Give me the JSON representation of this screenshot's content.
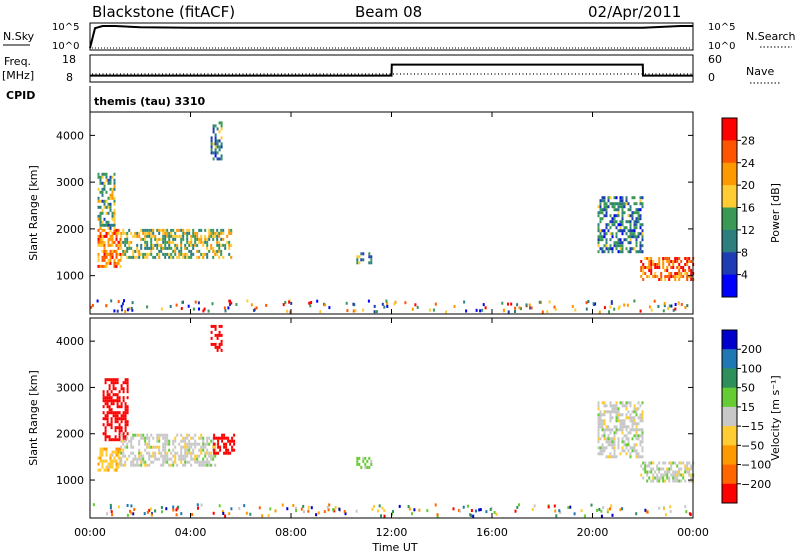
{
  "header": {
    "station": "Blackstone (fitACF)",
    "beam": "Beam 08",
    "date": "02/Apr/2011"
  },
  "top_panels": {
    "nsky_label": "N.Sky",
    "nsearch_label": "N.Search",
    "noise_ticks": [
      "10^5",
      "10^0"
    ],
    "freq_label_1": "Freq.",
    "freq_label_2": "[MHz]",
    "freq_ticks": [
      "18",
      "8"
    ],
    "nave_label": "Nave",
    "nave_ticks": [
      "60",
      "0"
    ],
    "cpid_label": "CPID",
    "cpid_value": "themis (tau) 3310"
  },
  "axes": {
    "ylabel": "Slant Range [km]",
    "xlabel": "Time UT",
    "y_ticks": [
      "4000",
      "3000",
      "2000",
      "1000"
    ],
    "x_ticks": [
      "00:00",
      "04:00",
      "08:00",
      "12:00",
      "16:00",
      "20:00",
      "00:00"
    ]
  },
  "power_scale": {
    "label": "Power [dB]",
    "ticks": [
      "28",
      "24",
      "20",
      "16",
      "12",
      "8",
      "4"
    ],
    "colors": [
      "#ff0000",
      "#ff5500",
      "#ff9900",
      "#ffcc33",
      "#3a9a55",
      "#2d7f7f",
      "#1e3cb4",
      "#0000ff"
    ]
  },
  "velocity_scale": {
    "label": "Velocity [m s⁻¹]",
    "ticks": [
      "200",
      "100",
      "50",
      "15",
      "−15",
      "−50",
      "−100",
      "−200"
    ],
    "colors": [
      "#0000cc",
      "#1f78b4",
      "#2d8f5a",
      "#66cc33",
      "#c8c8c8",
      "#ffcc33",
      "#ff9900",
      "#ff6600",
      "#ff0000"
    ]
  },
  "chart_data": [
    {
      "type": "line",
      "title": "Blackstone (fitACF)   Beam 08   02/Apr/2011",
      "series": [
        {
          "name": "N.Sky",
          "x_hours": [
            0,
            0.2,
            0.5,
            1,
            2,
            4,
            8,
            12,
            16,
            20,
            22,
            23.5,
            24
          ],
          "values_log10": [
            0,
            4.5,
            5,
            5,
            4.7,
            4.6,
            4.6,
            4.6,
            4.6,
            4.6,
            4.6,
            5,
            5
          ]
        },
        {
          "name": "N.Search",
          "x_hours": [
            0,
            24
          ],
          "values_log10": [
            0,
            0
          ]
        }
      ],
      "ylabel": "",
      "ylim_log10": [
        0,
        5
      ],
      "xlim_hours": [
        0,
        24
      ]
    },
    {
      "type": "line",
      "series": [
        {
          "name": "Freq.",
          "unit": "MHz",
          "x_hours": [
            0,
            0.1,
            12,
            12.01,
            22,
            22.01,
            24
          ],
          "values": [
            10,
            10,
            10,
            15,
            15,
            10,
            10
          ]
        },
        {
          "name": "Nave",
          "x_hours": [
            0,
            24
          ],
          "values": [
            10,
            10
          ]
        }
      ],
      "ylim_freq": [
        8,
        18
      ],
      "ylim_nave": [
        0,
        60
      ],
      "xlim_hours": [
        0,
        24
      ]
    },
    {
      "type": "heatmap",
      "title": "Power",
      "xlabel": "",
      "ylabel": "Slant Range [km]",
      "xlim_hours": [
        0,
        24
      ],
      "ylim_km": [
        180,
        4500
      ],
      "colorbar": {
        "label": "Power [dB]",
        "range": [
          0,
          32
        ]
      },
      "regions": [
        {
          "t": [
            0.3,
            1.2
          ],
          "r": [
            1200,
            2000
          ],
          "value": 24
        },
        {
          "t": [
            0.3,
            1.0
          ],
          "r": [
            2000,
            3200
          ],
          "value": 14
        },
        {
          "t": [
            1.2,
            5.6
          ],
          "r": [
            1400,
            2000
          ],
          "value": 16
        },
        {
          "t": [
            4.8,
            5.2
          ],
          "r": [
            3500,
            4300
          ],
          "value": 10
        },
        {
          "t": [
            10.6,
            11.2
          ],
          "r": [
            1250,
            1500
          ],
          "value": 12
        },
        {
          "t": [
            20.2,
            22.0
          ],
          "r": [
            1500,
            2700
          ],
          "value": 10
        },
        {
          "t": [
            21.9,
            24.0
          ],
          "r": [
            950,
            1400
          ],
          "value": 26
        }
      ]
    },
    {
      "type": "heatmap",
      "title": "Velocity",
      "xlabel": "Time UT",
      "ylabel": "Slant Range [km]",
      "xlim_hours": [
        0,
        24
      ],
      "ylim_km": [
        180,
        4500
      ],
      "colorbar": {
        "label": "Velocity [m s⁻¹]",
        "range": [
          -200,
          200
        ]
      },
      "regions": [
        {
          "t": [
            0.3,
            1.2
          ],
          "r": [
            1200,
            1700
          ],
          "value": -50
        },
        {
          "t": [
            0.5,
            1.5
          ],
          "r": [
            1900,
            3200
          ],
          "value": -200
        },
        {
          "t": [
            1.2,
            5.0
          ],
          "r": [
            1300,
            2000
          ],
          "value": 0
        },
        {
          "t": [
            4.9,
            5.7
          ],
          "r": [
            1550,
            2000
          ],
          "value": -200
        },
        {
          "t": [
            4.8,
            5.2
          ],
          "r": [
            3800,
            4350
          ],
          "value": -200
        },
        {
          "t": [
            10.6,
            11.2
          ],
          "r": [
            1250,
            1500
          ],
          "value": 50
        },
        {
          "t": [
            20.2,
            22.0
          ],
          "r": [
            1500,
            2700
          ],
          "value": 0
        },
        {
          "t": [
            21.9,
            24.0
          ],
          "r": [
            1000,
            1400
          ],
          "value": 0
        }
      ]
    }
  ]
}
